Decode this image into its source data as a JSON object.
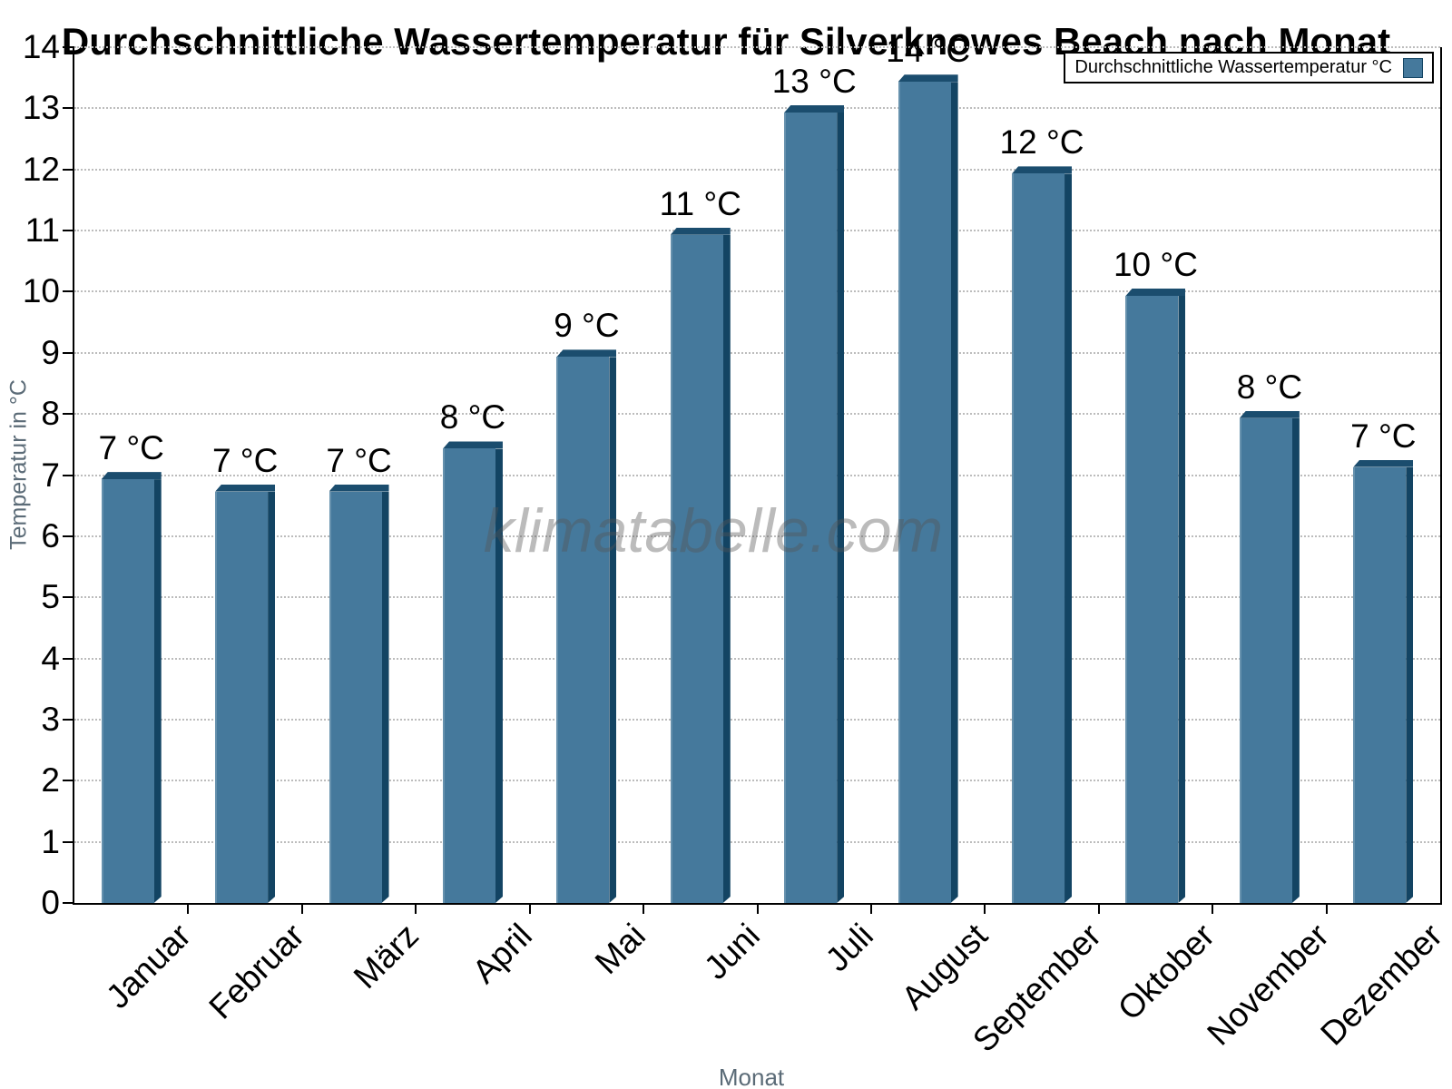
{
  "title": "Durchschnittliche Wassertemperatur für Silverknowes Beach nach Monat",
  "watermark": "klimatabelle.com",
  "legend": {
    "label": "Durchschnittliche Wassertemperatur °C"
  },
  "x_axis": {
    "label": "Monat"
  },
  "y_axis": {
    "label": "Temperatur in °C",
    "min": 0,
    "max": 14,
    "tick_step": 1
  },
  "colors": {
    "bar_fill": "#45799c",
    "bar_top_edge": "#1b4d6e",
    "bar_right_edge": "#134463",
    "grid": "#bcbcbc",
    "axis": "#000000",
    "axis_title_text": "#5b6b77",
    "watermark_text": "#c2c2c2"
  },
  "chart_data": {
    "type": "bar",
    "title": "Durchschnittliche Wassertemperatur für Silverknowes Beach nach Monat",
    "xlabel": "Monat",
    "ylabel": "Temperatur in °C",
    "ylim": [
      0,
      14
    ],
    "grid": "horizontal-dotted",
    "legend_position": "top-right",
    "categories": [
      "Januar",
      "Februar",
      "März",
      "April",
      "Mai",
      "Juni",
      "Juli",
      "August",
      "September",
      "Oktober",
      "November",
      "Dezember"
    ],
    "values": [
      7.05,
      6.85,
      6.85,
      7.55,
      9.05,
      11.05,
      13.05,
      13.55,
      12.05,
      10.05,
      8.05,
      7.25
    ],
    "bar_labels": [
      "7 °C",
      "7 °C",
      "7 °C",
      "8 °C",
      "9 °C",
      "11 °C",
      "13 °C",
      "14 °C",
      "12 °C",
      "10 °C",
      "8 °C",
      "7 °C"
    ],
    "series": [
      {
        "name": "Durchschnittliche Wassertemperatur °C",
        "values": [
          7.05,
          6.85,
          6.85,
          7.55,
          9.05,
          11.05,
          13.05,
          13.55,
          12.05,
          10.05,
          8.05,
          7.25
        ]
      }
    ]
  }
}
